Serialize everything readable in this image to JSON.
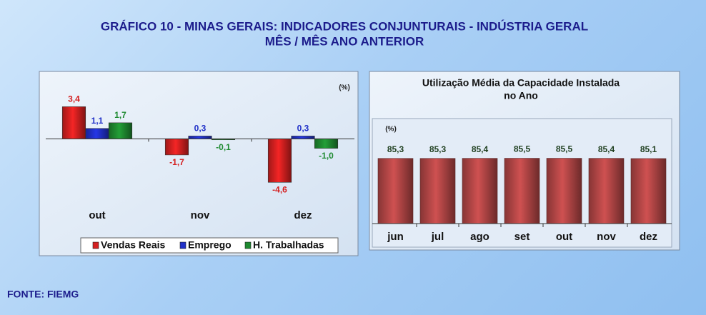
{
  "title_lines": [
    "GRÁFICO 10 - MINAS GERAIS: INDICADORES CONJUNTURAIS - INDÚSTRIA GERAL",
    "MÊS / MÊS ANO ANTERIOR"
  ],
  "source": "FONTE: FIEMG",
  "chart_data": [
    {
      "type": "bar",
      "unit_label": "(%)",
      "categories": [
        "out",
        "nov",
        "dez"
      ],
      "series": [
        {
          "name": "Vendas Reais",
          "color": "#d42020",
          "values": [
            3.4,
            -1.7,
            -4.6
          ],
          "value_labels": [
            "3,4",
            "-1,7",
            "-4,6"
          ]
        },
        {
          "name": "Emprego",
          "color": "#2030c8",
          "values": [
            1.1,
            0.3,
            0.3
          ],
          "value_labels": [
            "1,1",
            "0,3",
            "0,3"
          ]
        },
        {
          "name": "H. Trabalhadas",
          "color": "#1e8a30",
          "values": [
            1.7,
            -0.1,
            -1.0
          ],
          "value_labels": [
            "1,7",
            "-0,1",
            "-1,0"
          ]
        }
      ],
      "ylim": [
        -7,
        6
      ],
      "legend": "bottom"
    },
    {
      "type": "bar",
      "title_lines": [
        "Utilização Média da Capacidade Instalada",
        "no Ano"
      ],
      "unit_label": "(%)",
      "categories": [
        "jun",
        "jul",
        "ago",
        "set",
        "out",
        "nov",
        "dez"
      ],
      "values": [
        85.3,
        85.3,
        85.4,
        85.5,
        85.5,
        85.4,
        85.1
      ],
      "value_labels": [
        "85,3",
        "85,3",
        "85,4",
        "85,5",
        "85,5",
        "85,4",
        "85,1"
      ],
      "color": "#b44646",
      "ylim": [
        0,
        115
      ]
    }
  ]
}
